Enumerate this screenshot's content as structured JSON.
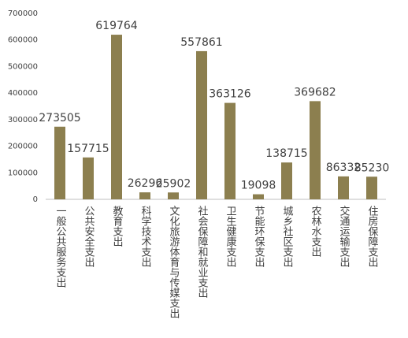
{
  "chart_data": {
    "type": "bar",
    "categories": [
      "一般公共服务支出",
      "公共安全支出",
      "教育支出",
      "科学技术支出",
      "文化旅游体育与传媒支出",
      "社会保障和就业支出",
      "卫生健康支出",
      "节能环保支出",
      "城乡社区支出",
      "农林水支出",
      "交通运输支出",
      "住房保障支出"
    ],
    "values": [
      273505,
      157715,
      619764,
      26296,
      25902,
      557861,
      363126,
      19098,
      138715,
      369682,
      86332,
      85230
    ],
    "color": "#8c7f4f",
    "ylim": [
      0,
      700000
    ],
    "yticks": [
      0,
      100000,
      200000,
      300000,
      400000,
      500000,
      600000,
      700000
    ],
    "grid": false
  }
}
